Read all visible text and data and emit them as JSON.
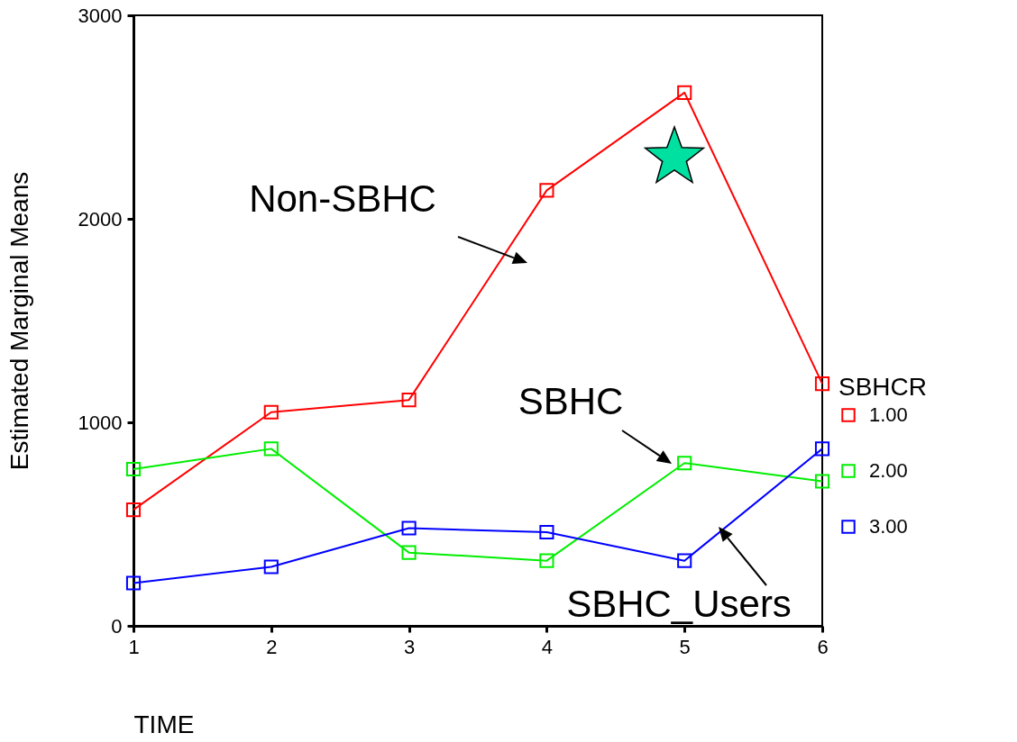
{
  "chart_data": {
    "type": "line",
    "xlabel": "TIME",
    "ylabel": "Estimated Marginal Means",
    "legend_title": "SBHCR",
    "x": [
      1,
      2,
      3,
      4,
      5,
      6
    ],
    "xlim": [
      1,
      6
    ],
    "xticks": [
      1,
      2,
      3,
      4,
      5,
      6
    ],
    "ylim": [
      0,
      3000
    ],
    "yticks": [
      0,
      1000,
      2000,
      3000
    ],
    "series": [
      {
        "name": "1.00",
        "color": "#ff0000",
        "values": [
          570,
          1050,
          1110,
          2140,
          2620,
          1190
        ]
      },
      {
        "name": "2.00",
        "color": "#00ee00",
        "values": [
          770,
          870,
          360,
          320,
          800,
          710
        ]
      },
      {
        "name": "3.00",
        "color": "#0000ff",
        "values": [
          210,
          290,
          480,
          460,
          320,
          870
        ]
      }
    ],
    "annotations": [
      "Non-SBHC",
      "SBHC",
      "SBHC_Users"
    ],
    "grid": false,
    "legend": "right",
    "marker": "square",
    "line_style": "solid"
  }
}
